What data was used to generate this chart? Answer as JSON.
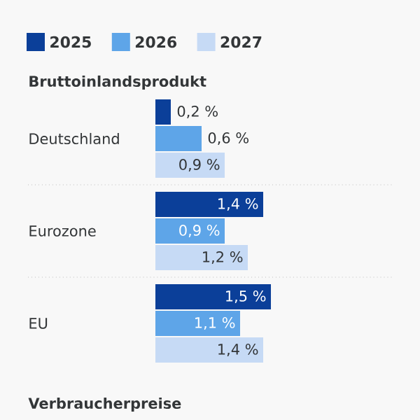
{
  "chart_data": {
    "type": "bar",
    "orientation": "horizontal",
    "subtitle": "Bruttoinlandsprodukt",
    "categories": [
      "Deutschland",
      "Eurozone",
      "EU"
    ],
    "series": [
      {
        "name": "2025",
        "color": "#0b3f99",
        "values": [
          0.2,
          1.4,
          1.5
        ],
        "value_labels": [
          "0,2 %",
          "1,4 %",
          "1,5 %"
        ]
      },
      {
        "name": "2026",
        "color": "#5ea5e8",
        "values": [
          0.6,
          0.9,
          1.1
        ],
        "value_labels": [
          "0,6 %",
          "0,9 %",
          "1,1 %"
        ]
      },
      {
        "name": "2027",
        "color": "#c6daf5",
        "values": [
          0.9,
          1.2,
          1.4
        ],
        "value_labels": [
          "0,9 %",
          "1,2 %",
          "1,4 %"
        ]
      }
    ],
    "legend": "top left",
    "annotations": [
      "Verbraucherpreise"
    ]
  }
}
